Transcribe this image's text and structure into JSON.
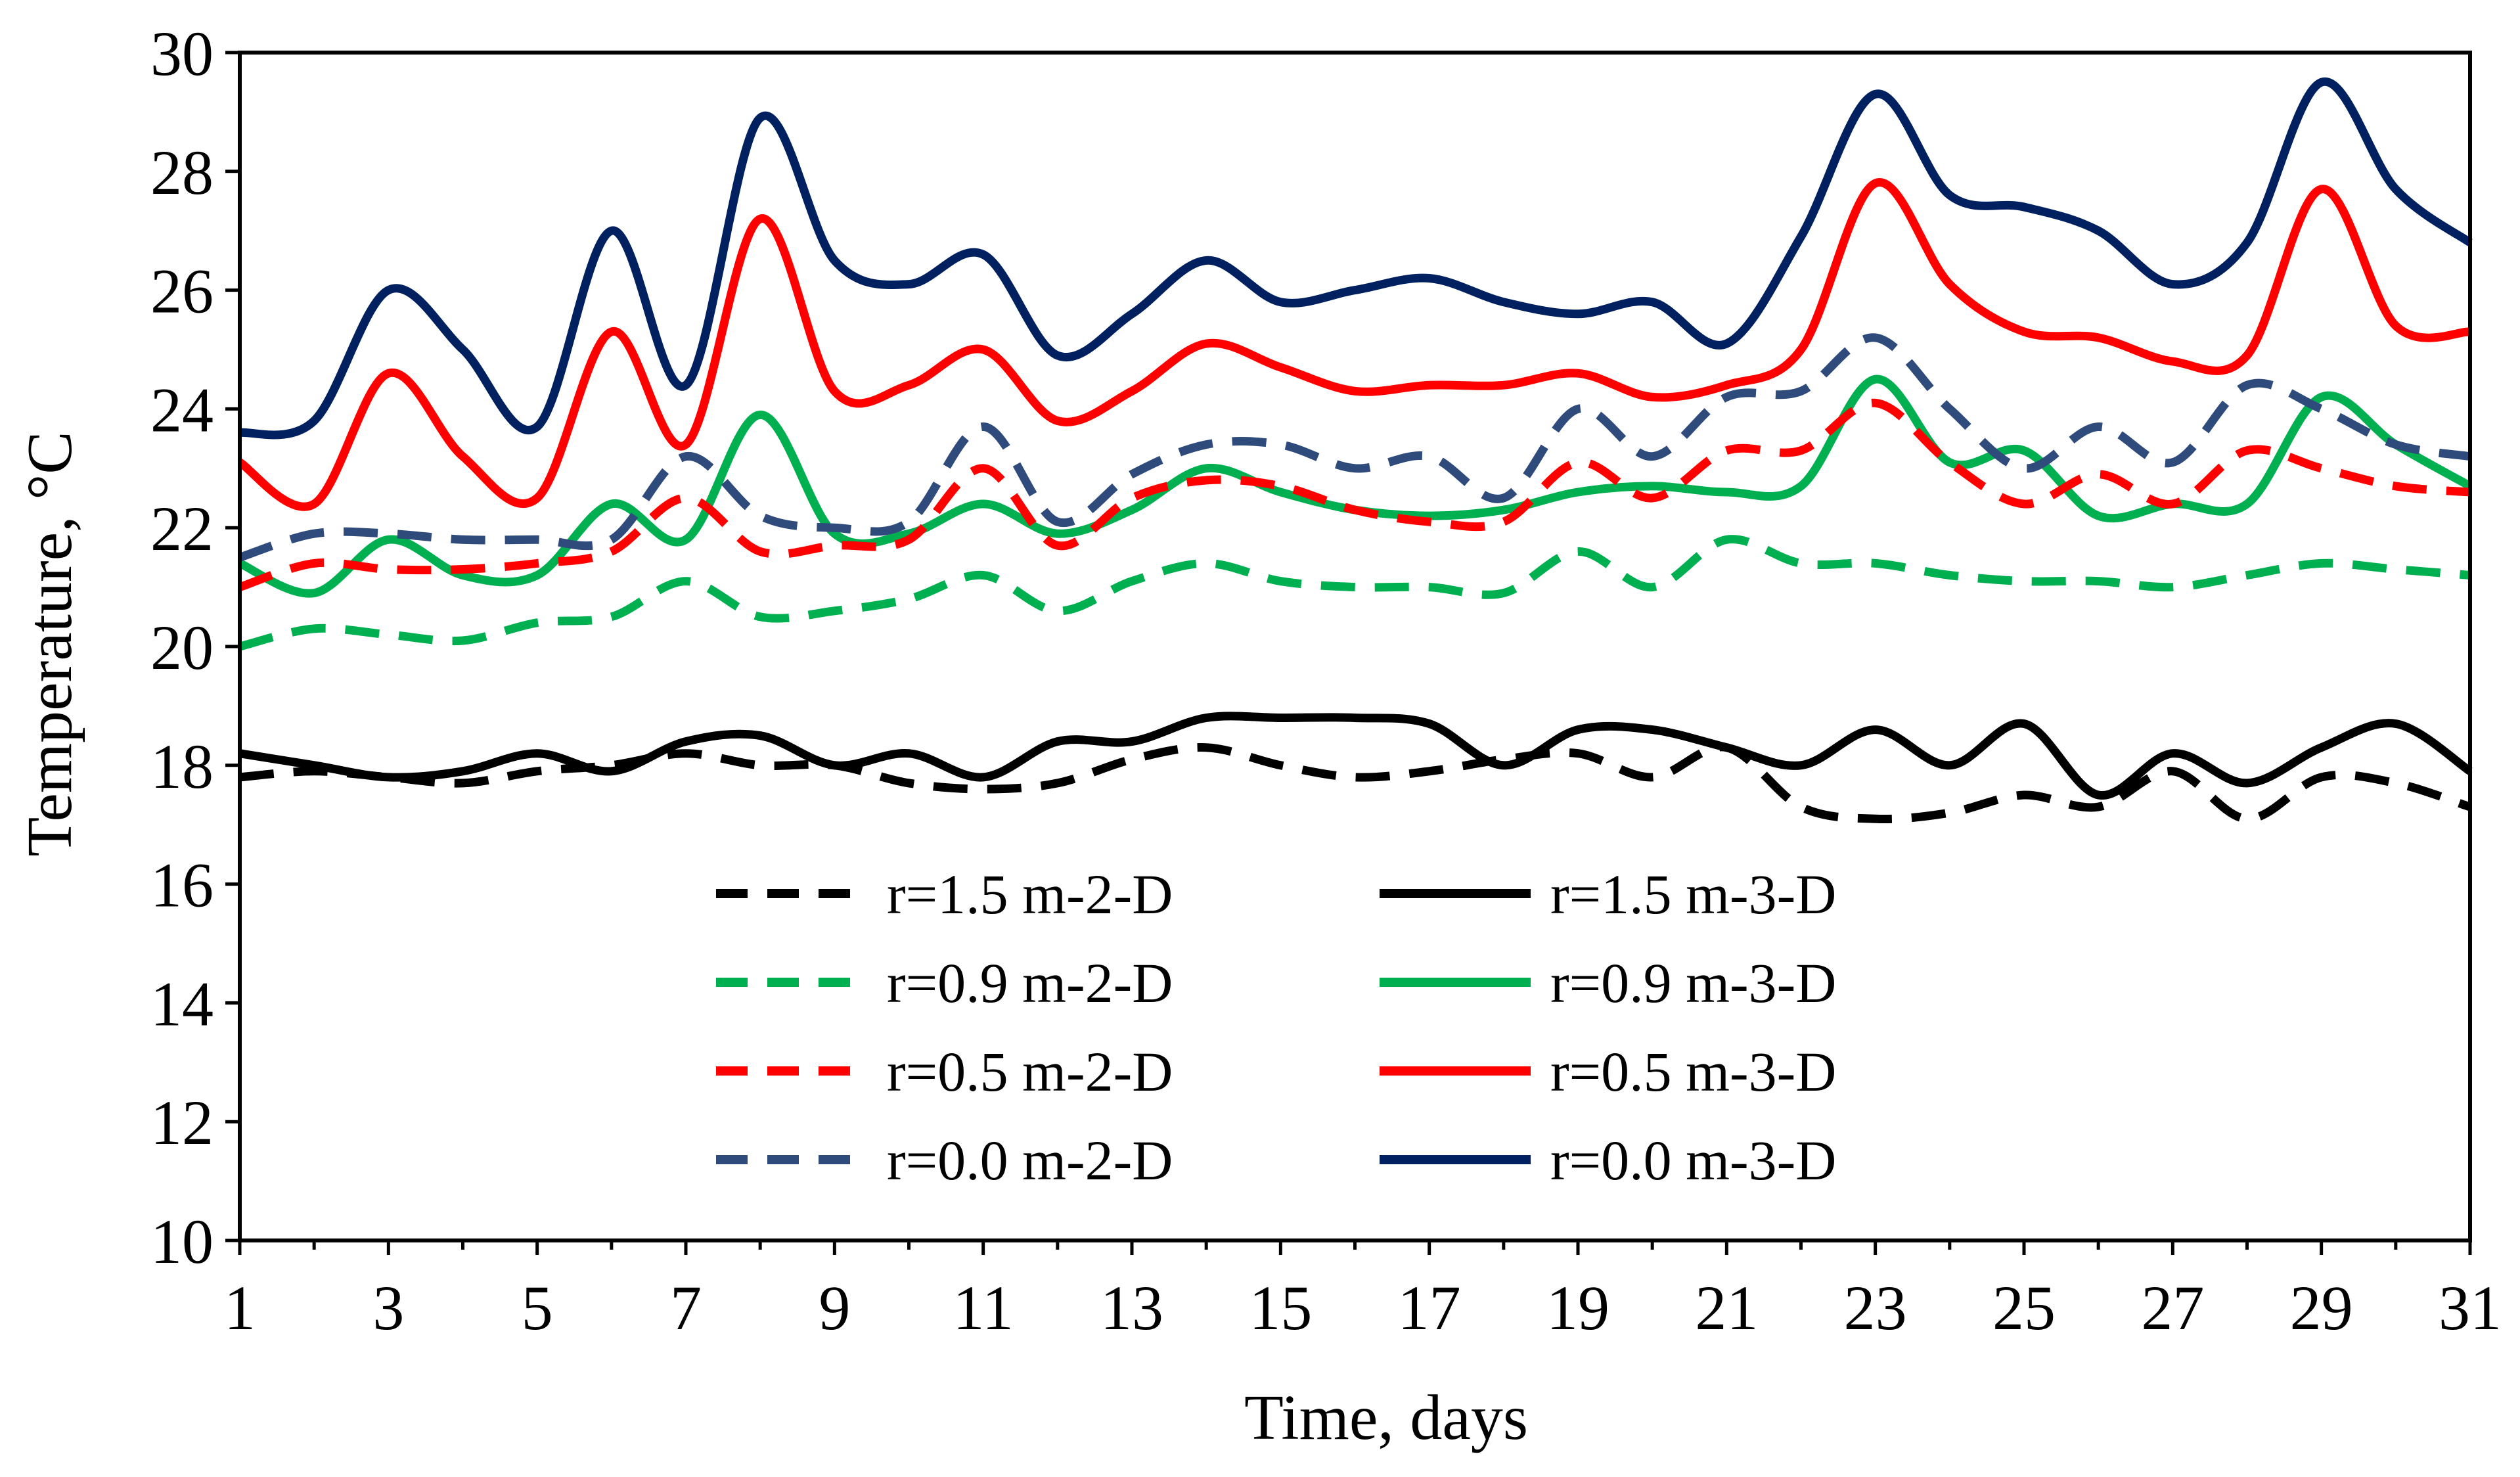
{
  "chart_data": {
    "type": "line",
    "title": "",
    "xlabel": "Time, days",
    "ylabel": "Temperature, °C",
    "xlim": [
      1,
      31
    ],
    "ylim": [
      10,
      30
    ],
    "x_ticks": [
      1,
      3,
      5,
      7,
      9,
      11,
      13,
      15,
      17,
      19,
      21,
      23,
      25,
      27,
      29,
      31
    ],
    "y_ticks": [
      10,
      12,
      14,
      16,
      18,
      20,
      22,
      24,
      26,
      28,
      30
    ],
    "grid": false,
    "legend_position": "lower-left-inside",
    "x": [
      1,
      2,
      3,
      4,
      5,
      6,
      7,
      8,
      9,
      10,
      11,
      12,
      13,
      14,
      15,
      16,
      17,
      18,
      19,
      20,
      21,
      22,
      23,
      24,
      25,
      26,
      27,
      28,
      29,
      30,
      31
    ],
    "series": [
      {
        "name": "r=1.5 m-2-D",
        "style": "dashed",
        "color": "#000000",
        "values": [
          17.8,
          17.9,
          17.8,
          17.7,
          17.9,
          18.0,
          18.2,
          18.0,
          18.0,
          17.7,
          17.6,
          17.7,
          18.1,
          18.3,
          18.0,
          17.8,
          17.9,
          18.1,
          18.2,
          17.8,
          18.3,
          17.3,
          17.1,
          17.2,
          17.5,
          17.3,
          17.9,
          17.1,
          17.8,
          17.7,
          17.3
        ]
      },
      {
        "name": "r=1.5 m-3-D",
        "style": "solid",
        "color": "#000000",
        "values": [
          18.2,
          18.0,
          17.8,
          17.9,
          18.2,
          17.9,
          18.4,
          18.5,
          18.0,
          18.2,
          17.8,
          18.4,
          18.4,
          18.8,
          18.8,
          18.8,
          18.7,
          18.0,
          18.6,
          18.6,
          18.3,
          18.0,
          18.6,
          18.0,
          18.7,
          17.5,
          18.2,
          17.7,
          18.3,
          18.7,
          17.9
        ]
      },
      {
        "name": "r=0.9 m-2-D",
        "style": "dashed",
        "color": "#00b050",
        "values": [
          20.0,
          20.3,
          20.2,
          20.1,
          20.4,
          20.5,
          21.1,
          20.5,
          20.6,
          20.8,
          21.2,
          20.6,
          21.1,
          21.4,
          21.1,
          21.0,
          21.0,
          20.9,
          21.6,
          21.0,
          21.8,
          21.4,
          21.4,
          21.2,
          21.1,
          21.1,
          21.0,
          21.2,
          21.4,
          21.3,
          21.2
        ]
      },
      {
        "name": "r=0.9 m-3-D",
        "style": "solid",
        "color": "#00b050",
        "values": [
          21.4,
          20.9,
          21.8,
          21.2,
          21.2,
          22.4,
          21.8,
          23.9,
          21.9,
          21.9,
          22.4,
          21.9,
          22.3,
          23.0,
          22.6,
          22.3,
          22.2,
          22.3,
          22.6,
          22.7,
          22.6,
          22.7,
          24.5,
          23.1,
          23.3,
          22.2,
          22.4,
          22.4,
          24.2,
          23.4,
          22.7
        ]
      },
      {
        "name": "r=0.5 m-2-D",
        "style": "dashed",
        "color": "#ff0000",
        "values": [
          21.0,
          21.4,
          21.3,
          21.3,
          21.4,
          21.6,
          22.5,
          21.6,
          21.7,
          21.8,
          23.0,
          21.7,
          22.5,
          22.8,
          22.7,
          22.3,
          22.1,
          22.1,
          23.1,
          22.5,
          23.3,
          23.3,
          24.1,
          23.1,
          22.4,
          22.9,
          22.4,
          23.3,
          23.0,
          22.7,
          22.6
        ]
      },
      {
        "name": "r=0.5 m-3-D",
        "style": "solid",
        "color": "#ff0000",
        "values": [
          23.1,
          22.4,
          24.6,
          23.2,
          22.5,
          25.3,
          23.4,
          27.2,
          24.3,
          24.4,
          25.0,
          23.8,
          24.3,
          25.1,
          24.7,
          24.3,
          24.4,
          24.4,
          24.6,
          24.2,
          24.4,
          25.0,
          27.8,
          26.1,
          25.3,
          25.2,
          24.8,
          24.9,
          27.7,
          25.4,
          25.3
        ]
      },
      {
        "name": "r=0.0 m-2-D",
        "style": "dashed",
        "color": "#2f4b7c",
        "values": [
          21.5,
          21.9,
          21.9,
          21.8,
          21.8,
          21.8,
          23.2,
          22.2,
          22.0,
          22.1,
          23.7,
          22.1,
          22.9,
          23.4,
          23.4,
          23.0,
          23.2,
          22.5,
          24.0,
          23.2,
          24.2,
          24.3,
          25.2,
          24.0,
          23.0,
          23.7,
          23.1,
          24.4,
          24.0,
          23.4,
          23.2
        ]
      },
      {
        "name": "r=0.0 m-3-D",
        "style": "solid",
        "color": "#002060",
        "values": [
          23.6,
          23.8,
          26.0,
          25.0,
          23.7,
          27.0,
          24.4,
          28.9,
          26.5,
          26.1,
          26.6,
          24.9,
          25.6,
          26.5,
          25.8,
          26.0,
          26.2,
          25.8,
          25.6,
          25.8,
          25.1,
          26.9,
          29.3,
          27.6,
          27.4,
          27.0,
          26.1,
          26.8,
          29.5,
          27.7,
          26.8
        ]
      }
    ]
  }
}
